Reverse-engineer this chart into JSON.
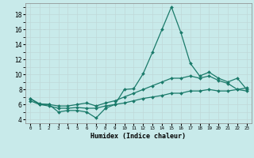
{
  "xlabel": "Humidex (Indice chaleur)",
  "background_color": "#c8eaea",
  "grid_color": "#c0d8d8",
  "line_color": "#1a7a6a",
  "xlim": [
    -0.5,
    23.5
  ],
  "ylim": [
    3.5,
    19.5
  ],
  "yticks": [
    4,
    6,
    8,
    10,
    12,
    14,
    16,
    18
  ],
  "xtick_labels": [
    "0",
    "1",
    "2",
    "3",
    "4",
    "5",
    "6",
    "7",
    "8",
    "9",
    "10",
    "11",
    "12",
    "13",
    "14",
    "15",
    "16",
    "17",
    "18",
    "19",
    "20",
    "21",
    "22",
    "23"
  ],
  "series": [
    [
      6.8,
      6.1,
      6.0,
      5.0,
      5.2,
      5.2,
      5.0,
      4.2,
      5.5,
      6.0,
      8.0,
      8.1,
      10.1,
      13.0,
      16.0,
      19.0,
      15.6,
      11.5,
      9.8,
      10.3,
      9.5,
      9.0,
      9.5,
      8.0
    ],
    [
      6.8,
      6.0,
      6.0,
      5.8,
      5.8,
      6.0,
      6.2,
      5.8,
      6.2,
      6.5,
      7.0,
      7.5,
      8.0,
      8.5,
      9.0,
      9.5,
      9.5,
      9.8,
      9.5,
      9.8,
      9.2,
      8.8,
      8.0,
      7.8
    ],
    [
      6.5,
      6.0,
      5.8,
      5.5,
      5.5,
      5.6,
      5.5,
      5.5,
      5.8,
      6.0,
      6.2,
      6.5,
      6.8,
      7.0,
      7.2,
      7.5,
      7.5,
      7.8,
      7.8,
      8.0,
      7.8,
      7.8,
      8.0,
      8.2
    ]
  ]
}
